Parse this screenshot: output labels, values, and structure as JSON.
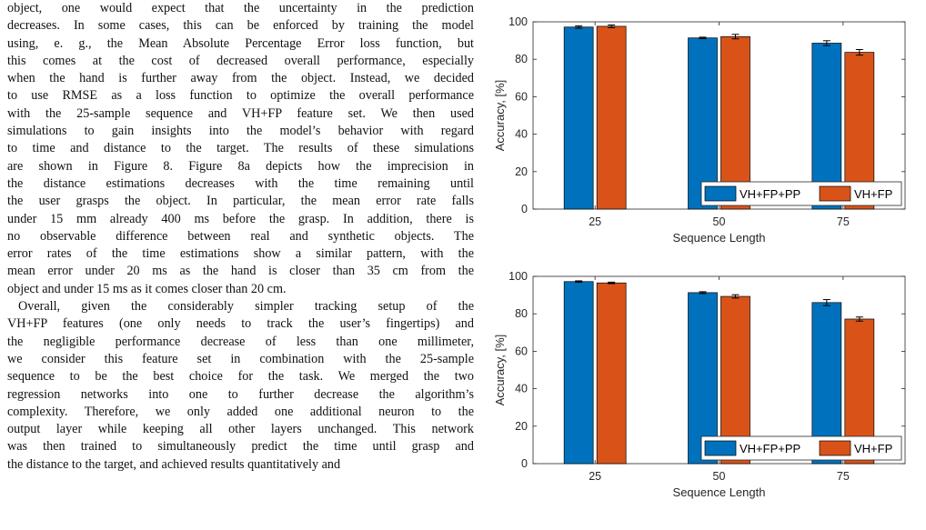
{
  "paper": {
    "paragraph1_lines": [
      "object, one would expect that the uncertainty in the prediction",
      "decreases. In some cases, this can be enforced by training the model",
      "using, e. g., the Mean Absolute Percentage Error loss function, but",
      "this comes at the cost of decreased overall performance, especially",
      "when the hand is further away from the object. Instead, we decided",
      "to use RMSE as a loss function to optimize the overall performance",
      "with the 25-sample sequence and VH+FP feature set. We then used",
      "simulations to gain insights into the model’s behavior with regard",
      "to time and distance to the target. The results of these simulations",
      "are shown in Figure 8. Figure 8a depicts how the imprecision in",
      "the distance estimations decreases with the time remaining until",
      "the user grasps the object. In particular, the mean error rate falls",
      "under 15 mm already 400 ms before the grasp. In addition, there is",
      "no observable difference between real and synthetic objects. The",
      "error rates of the time estimations show a similar pattern, with the",
      "mean error under 20 ms as the hand is closer than 35 cm from the",
      "object and under 15 ms as it comes closer than 20 cm."
    ],
    "paragraph2_lines": [
      "Overall, given the considerably simpler tracking setup of the",
      "VH+FP features (one only needs to track the user’s fingertips) and",
      "the negligible performance decrease of less than one millimeter,",
      "we consider this feature set in combination with the 25-sample",
      "sequence to be the best choice for the task. We merged the two",
      "regression networks into one to further decrease the algorithm’s",
      "complexity. Therefore, we only added one additional neuron to the",
      "output layer while keeping all other layers unchanged. This network",
      "was then trained to simultaneously predict the time until grasp and",
      "the distance to the target, and achieved results quantitatively and"
    ]
  },
  "colors": {
    "series1": "#0072BD",
    "series2": "#D95319"
  },
  "chart_data": [
    {
      "type": "bar",
      "categories": [
        "25",
        "50",
        "75"
      ],
      "series": [
        {
          "name": "VH+FP+PP",
          "values": [
            97.2,
            91.4,
            88.6
          ],
          "errors": [
            0.6,
            0.4,
            1.3
          ]
        },
        {
          "name": "VH+FP",
          "values": [
            97.6,
            92.1,
            83.7
          ],
          "errors": [
            0.7,
            1.2,
            1.5
          ]
        }
      ],
      "xlabel": "Sequence Length",
      "ylabel": "Accuracy, [%]",
      "ylim": [
        0,
        100
      ],
      "yticks": [
        0,
        20,
        40,
        60,
        80,
        100
      ],
      "grid": false,
      "legend": "bottom-right, horizontal"
    },
    {
      "type": "bar",
      "categories": [
        "25",
        "50",
        "75"
      ],
      "series": [
        {
          "name": "VH+FP+PP",
          "values": [
            97.2,
            91.3,
            86.0
          ],
          "errors": [
            0.4,
            0.5,
            1.6
          ]
        },
        {
          "name": "VH+FP",
          "values": [
            96.5,
            89.3,
            77.2
          ],
          "errors": [
            0.4,
            0.9,
            1.1
          ]
        }
      ],
      "xlabel": "Sequence Length",
      "ylabel": "Accuracy, [%]",
      "ylim": [
        0,
        100
      ],
      "yticks": [
        0,
        20,
        40,
        60,
        80,
        100
      ],
      "grid": false,
      "legend": "bottom-right, horizontal"
    }
  ]
}
